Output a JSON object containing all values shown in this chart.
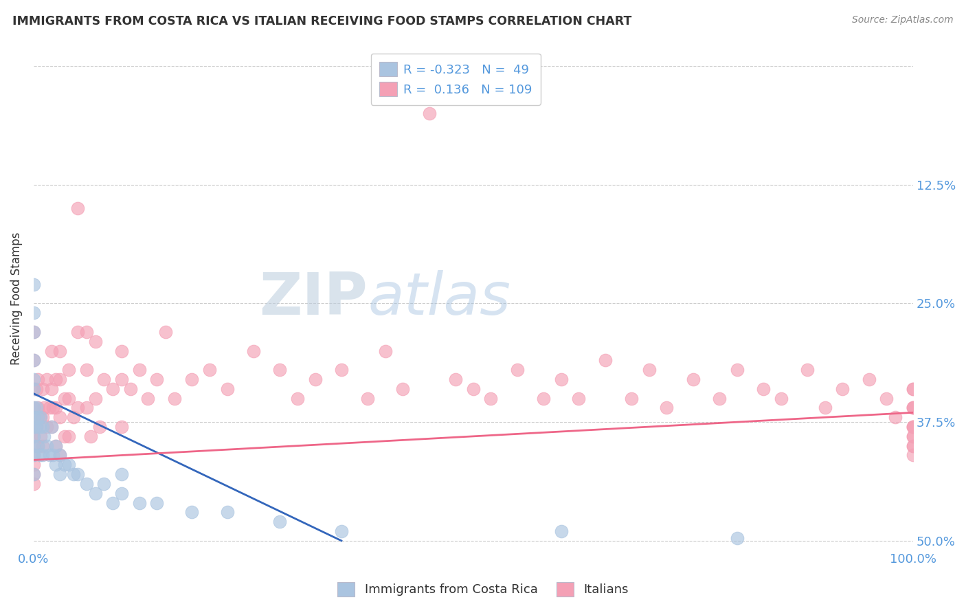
{
  "title": "IMMIGRANTS FROM COSTA RICA VS ITALIAN RECEIVING FOOD STAMPS CORRELATION CHART",
  "source": "Source: ZipAtlas.com",
  "ylabel": "Receiving Food Stamps",
  "xlabel": "",
  "xlim": [
    0.0,
    1.0
  ],
  "ylim": [
    -0.01,
    0.52
  ],
  "yticks": [
    0.0,
    0.125,
    0.25,
    0.375,
    0.5
  ],
  "xtick_labels": [
    "0.0%",
    "100.0%"
  ],
  "xtick_positions": [
    0.0,
    1.0
  ],
  "right_ytick_labels": [
    "50.0%",
    "37.5%",
    "25.0%",
    "12.5%",
    ""
  ],
  "costa_rica_R": -0.323,
  "costa_rica_N": 49,
  "italian_R": 0.136,
  "italian_N": 109,
  "costa_rica_color": "#aac4e0",
  "italian_color": "#f4a0b5",
  "trendline_costa_rica_color": "#3366bb",
  "trendline_italian_color": "#ee6688",
  "watermark_zip": "ZIP",
  "watermark_atlas": "atlas",
  "background_color": "#ffffff",
  "grid_color": "#cccccc",
  "title_color": "#333333",
  "label_color": "#5599dd",
  "legend_text_color": "#5599dd",
  "cr_trendline_x": [
    0.0,
    0.35
  ],
  "cr_trendline_y": [
    0.155,
    0.0
  ],
  "it_trendline_x": [
    0.0,
    1.0
  ],
  "it_trendline_y": [
    0.085,
    0.135
  ],
  "costa_rica_x": [
    0.0,
    0.0,
    0.0,
    0.0,
    0.0,
    0.0,
    0.0,
    0.0,
    0.0,
    0.0,
    0.0,
    0.0,
    0.0,
    0.003,
    0.003,
    0.005,
    0.005,
    0.007,
    0.007,
    0.008,
    0.01,
    0.01,
    0.012,
    0.015,
    0.018,
    0.02,
    0.022,
    0.025,
    0.025,
    0.03,
    0.03,
    0.035,
    0.04,
    0.045,
    0.05,
    0.06,
    0.07,
    0.08,
    0.09,
    0.1,
    0.1,
    0.12,
    0.14,
    0.18,
    0.22,
    0.28,
    0.35,
    0.6,
    0.8
  ],
  "costa_rica_y": [
    0.27,
    0.24,
    0.22,
    0.19,
    0.17,
    0.16,
    0.14,
    0.13,
    0.12,
    0.11,
    0.1,
    0.09,
    0.07,
    0.14,
    0.12,
    0.13,
    0.1,
    0.12,
    0.09,
    0.13,
    0.12,
    0.09,
    0.11,
    0.1,
    0.09,
    0.12,
    0.09,
    0.1,
    0.08,
    0.09,
    0.07,
    0.08,
    0.08,
    0.07,
    0.07,
    0.06,
    0.05,
    0.06,
    0.04,
    0.07,
    0.05,
    0.04,
    0.04,
    0.03,
    0.03,
    0.02,
    0.01,
    0.01,
    0.003
  ],
  "italian_x": [
    0.0,
    0.0,
    0.0,
    0.0,
    0.0,
    0.0,
    0.0,
    0.0,
    0.0,
    0.0,
    0.003,
    0.003,
    0.005,
    0.005,
    0.005,
    0.007,
    0.008,
    0.01,
    0.01,
    0.01,
    0.012,
    0.015,
    0.015,
    0.018,
    0.02,
    0.02,
    0.02,
    0.022,
    0.025,
    0.025,
    0.025,
    0.03,
    0.03,
    0.03,
    0.03,
    0.035,
    0.035,
    0.04,
    0.04,
    0.04,
    0.045,
    0.05,
    0.05,
    0.05,
    0.06,
    0.06,
    0.06,
    0.065,
    0.07,
    0.07,
    0.075,
    0.08,
    0.09,
    0.1,
    0.1,
    0.1,
    0.11,
    0.12,
    0.13,
    0.14,
    0.15,
    0.16,
    0.18,
    0.2,
    0.22,
    0.25,
    0.28,
    0.3,
    0.32,
    0.35,
    0.38,
    0.4,
    0.42,
    0.45,
    0.48,
    0.5,
    0.52,
    0.55,
    0.58,
    0.6,
    0.62,
    0.65,
    0.68,
    0.7,
    0.72,
    0.75,
    0.78,
    0.8,
    0.83,
    0.85,
    0.88,
    0.9,
    0.92,
    0.95,
    0.97,
    0.98,
    1.0,
    1.0,
    1.0,
    1.0,
    1.0,
    1.0,
    1.0,
    1.0,
    1.0,
    1.0,
    1.0,
    1.0,
    1.0
  ],
  "italian_y": [
    0.22,
    0.19,
    0.16,
    0.14,
    0.12,
    0.11,
    0.09,
    0.08,
    0.07,
    0.06,
    0.16,
    0.12,
    0.17,
    0.14,
    0.1,
    0.13,
    0.11,
    0.16,
    0.13,
    0.1,
    0.14,
    0.17,
    0.12,
    0.14,
    0.2,
    0.16,
    0.12,
    0.14,
    0.17,
    0.14,
    0.1,
    0.2,
    0.17,
    0.13,
    0.09,
    0.15,
    0.11,
    0.18,
    0.15,
    0.11,
    0.13,
    0.35,
    0.22,
    0.14,
    0.22,
    0.18,
    0.14,
    0.11,
    0.21,
    0.15,
    0.12,
    0.17,
    0.16,
    0.2,
    0.17,
    0.12,
    0.16,
    0.18,
    0.15,
    0.17,
    0.22,
    0.15,
    0.17,
    0.18,
    0.16,
    0.2,
    0.18,
    0.15,
    0.17,
    0.18,
    0.15,
    0.2,
    0.16,
    0.45,
    0.17,
    0.16,
    0.15,
    0.18,
    0.15,
    0.17,
    0.15,
    0.19,
    0.15,
    0.18,
    0.14,
    0.17,
    0.15,
    0.18,
    0.16,
    0.15,
    0.18,
    0.14,
    0.16,
    0.17,
    0.15,
    0.13,
    0.16,
    0.14,
    0.12,
    0.11,
    0.16,
    0.14,
    0.12,
    0.1,
    0.14,
    0.12,
    0.1,
    0.09,
    0.11
  ]
}
